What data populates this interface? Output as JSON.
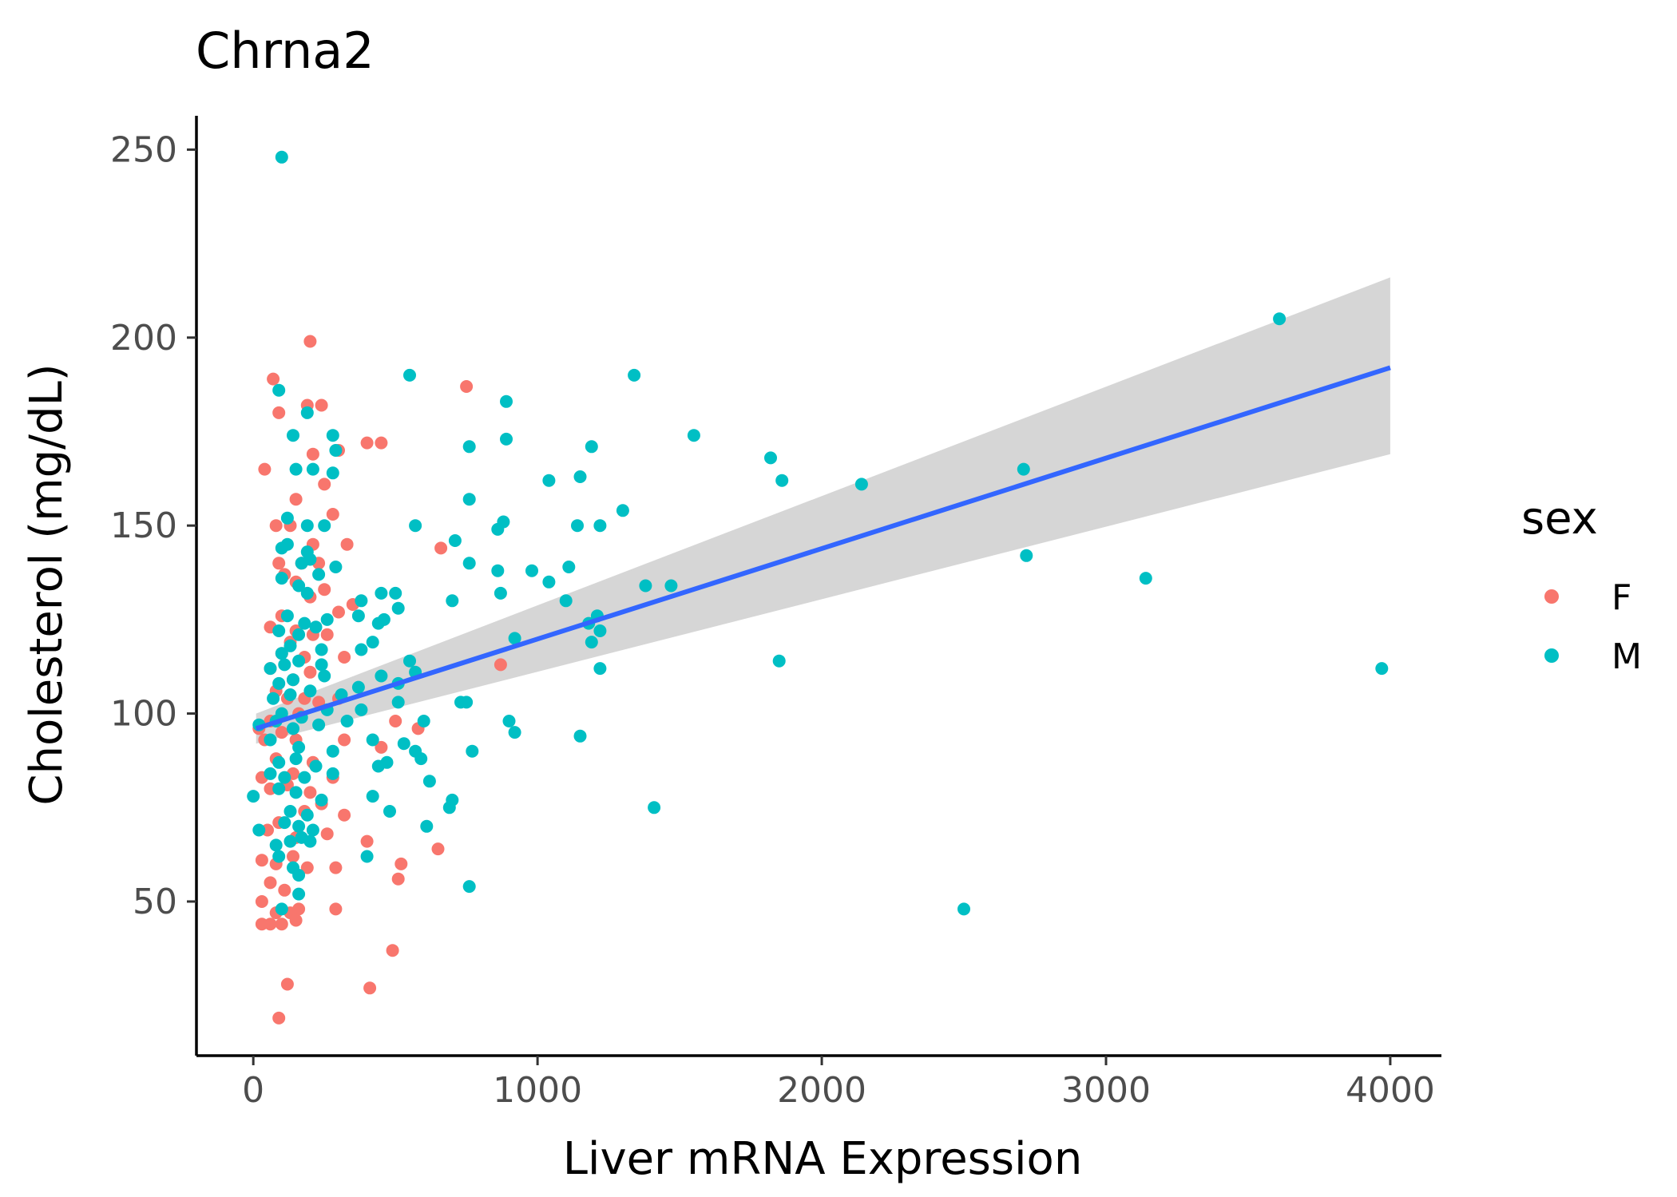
{
  "chart_data": {
    "type": "scatter",
    "title": "Chrna2",
    "xlabel": "Liver mRNA Expression",
    "ylabel": "Cholesterol (mg/dL)",
    "xlim": [
      -200,
      4180
    ],
    "ylim": [
      9,
      259
    ],
    "x_ticks": [
      0,
      1000,
      2000,
      3000,
      4000
    ],
    "y_ticks": [
      50,
      100,
      150,
      200,
      250
    ],
    "grid": false,
    "legend": {
      "title": "sex",
      "position": "right",
      "entries": [
        "F",
        "M"
      ]
    },
    "colors": {
      "F": "#F8766D",
      "M": "#00BFC4",
      "fit": "#3366FF",
      "ribbon": "#cccccc"
    },
    "fit": {
      "method": "lm",
      "x": [
        10,
        4000
      ],
      "y": [
        96,
        192
      ],
      "ci_lower": [
        92,
        169
      ],
      "ci_upper": [
        100,
        216
      ]
    },
    "series": [
      {
        "name": "F",
        "points": [
          [
            70,
            189
          ],
          [
            200,
            199
          ],
          [
            90,
            180
          ],
          [
            190,
            182
          ],
          [
            240,
            182
          ],
          [
            750,
            187
          ],
          [
            40,
            165
          ],
          [
            210,
            169
          ],
          [
            250,
            161
          ],
          [
            300,
            170
          ],
          [
            400,
            172
          ],
          [
            450,
            172
          ],
          [
            150,
            157
          ],
          [
            280,
            153
          ],
          [
            80,
            150
          ],
          [
            130,
            150
          ],
          [
            210,
            145
          ],
          [
            330,
            145
          ],
          [
            660,
            144
          ],
          [
            90,
            140
          ],
          [
            170,
            140
          ],
          [
            230,
            140
          ],
          [
            110,
            137
          ],
          [
            150,
            135
          ],
          [
            250,
            133
          ],
          [
            200,
            131
          ],
          [
            350,
            129
          ],
          [
            300,
            127
          ],
          [
            100,
            126
          ],
          [
            60,
            123
          ],
          [
            150,
            122
          ],
          [
            210,
            121
          ],
          [
            260,
            121
          ],
          [
            130,
            119
          ],
          [
            100,
            116
          ],
          [
            180,
            115
          ],
          [
            320,
            115
          ],
          [
            60,
            112
          ],
          [
            200,
            111
          ],
          [
            140,
            109
          ],
          [
            870,
            113
          ],
          [
            80,
            106
          ],
          [
            120,
            104
          ],
          [
            180,
            104
          ],
          [
            300,
            104
          ],
          [
            20,
            96
          ],
          [
            60,
            98
          ],
          [
            160,
            100
          ],
          [
            230,
            103
          ],
          [
            500,
            98
          ],
          [
            580,
            96
          ],
          [
            100,
            95
          ],
          [
            40,
            93
          ],
          [
            150,
            93
          ],
          [
            320,
            93
          ],
          [
            450,
            91
          ],
          [
            80,
            88
          ],
          [
            210,
            87
          ],
          [
            30,
            83
          ],
          [
            140,
            84
          ],
          [
            280,
            83
          ],
          [
            60,
            80
          ],
          [
            120,
            81
          ],
          [
            200,
            79
          ],
          [
            240,
            76
          ],
          [
            320,
            73
          ],
          [
            90,
            71
          ],
          [
            180,
            74
          ],
          [
            50,
            69
          ],
          [
            150,
            67
          ],
          [
            260,
            68
          ],
          [
            400,
            66
          ],
          [
            650,
            64
          ],
          [
            30,
            61
          ],
          [
            80,
            60
          ],
          [
            140,
            62
          ],
          [
            190,
            59
          ],
          [
            290,
            59
          ],
          [
            520,
            60
          ],
          [
            60,
            55
          ],
          [
            110,
            53
          ],
          [
            160,
            48
          ],
          [
            290,
            48
          ],
          [
            510,
            56
          ],
          [
            30,
            50
          ],
          [
            80,
            47
          ],
          [
            130,
            47
          ],
          [
            30,
            44
          ],
          [
            60,
            44
          ],
          [
            100,
            44
          ],
          [
            150,
            45
          ],
          [
            490,
            37
          ],
          [
            120,
            28
          ],
          [
            410,
            27
          ],
          [
            90,
            19
          ]
        ]
      },
      {
        "name": "M",
        "points": [
          [
            100,
            248
          ],
          [
            3610,
            205
          ],
          [
            90,
            186
          ],
          [
            550,
            190
          ],
          [
            1340,
            190
          ],
          [
            190,
            180
          ],
          [
            890,
            183
          ],
          [
            140,
            174
          ],
          [
            280,
            174
          ],
          [
            1550,
            174
          ],
          [
            290,
            170
          ],
          [
            760,
            171
          ],
          [
            890,
            173
          ],
          [
            1190,
            171
          ],
          [
            1820,
            168
          ],
          [
            150,
            165
          ],
          [
            210,
            165
          ],
          [
            280,
            164
          ],
          [
            2710,
            165
          ],
          [
            1040,
            162
          ],
          [
            1150,
            163
          ],
          [
            1860,
            162
          ],
          [
            2140,
            161
          ],
          [
            760,
            157
          ],
          [
            1300,
            154
          ],
          [
            120,
            152
          ],
          [
            190,
            150
          ],
          [
            250,
            150
          ],
          [
            570,
            150
          ],
          [
            860,
            149
          ],
          [
            880,
            151
          ],
          [
            1140,
            150
          ],
          [
            1220,
            150
          ],
          [
            100,
            144
          ],
          [
            120,
            145
          ],
          [
            190,
            143
          ],
          [
            200,
            141
          ],
          [
            710,
            146
          ],
          [
            2720,
            142
          ],
          [
            170,
            140
          ],
          [
            290,
            139
          ],
          [
            760,
            140
          ],
          [
            860,
            138
          ],
          [
            980,
            138
          ],
          [
            1110,
            139
          ],
          [
            100,
            136
          ],
          [
            160,
            134
          ],
          [
            190,
            132
          ],
          [
            230,
            137
          ],
          [
            870,
            132
          ],
          [
            1040,
            135
          ],
          [
            3140,
            136
          ],
          [
            1380,
            134
          ],
          [
            1470,
            134
          ],
          [
            380,
            130
          ],
          [
            450,
            132
          ],
          [
            500,
            132
          ],
          [
            700,
            130
          ],
          [
            1100,
            130
          ],
          [
            120,
            126
          ],
          [
            180,
            124
          ],
          [
            260,
            125
          ],
          [
            370,
            126
          ],
          [
            460,
            125
          ],
          [
            510,
            128
          ],
          [
            90,
            122
          ],
          [
            160,
            121
          ],
          [
            220,
            123
          ],
          [
            440,
            124
          ],
          [
            1210,
            126
          ],
          [
            1180,
            124
          ],
          [
            920,
            120
          ],
          [
            100,
            116
          ],
          [
            130,
            118
          ],
          [
            240,
            117
          ],
          [
            380,
            117
          ],
          [
            420,
            119
          ],
          [
            1190,
            119
          ],
          [
            1220,
            122
          ],
          [
            60,
            112
          ],
          [
            110,
            113
          ],
          [
            160,
            114
          ],
          [
            240,
            113
          ],
          [
            550,
            114
          ],
          [
            570,
            111
          ],
          [
            1220,
            112
          ],
          [
            1850,
            114
          ],
          [
            3970,
            112
          ],
          [
            90,
            108
          ],
          [
            140,
            109
          ],
          [
            250,
            110
          ],
          [
            450,
            110
          ],
          [
            510,
            108
          ],
          [
            70,
            104
          ],
          [
            130,
            105
          ],
          [
            200,
            106
          ],
          [
            310,
            105
          ],
          [
            370,
            107
          ],
          [
            730,
            103
          ],
          [
            750,
            103
          ],
          [
            100,
            100
          ],
          [
            170,
            99
          ],
          [
            260,
            101
          ],
          [
            380,
            101
          ],
          [
            510,
            103
          ],
          [
            20,
            97
          ],
          [
            80,
            98
          ],
          [
            140,
            96
          ],
          [
            230,
            97
          ],
          [
            330,
            98
          ],
          [
            600,
            98
          ],
          [
            900,
            98
          ],
          [
            920,
            95
          ],
          [
            1150,
            94
          ],
          [
            60,
            93
          ],
          [
            160,
            91
          ],
          [
            280,
            90
          ],
          [
            420,
            93
          ],
          [
            530,
            92
          ],
          [
            590,
            88
          ],
          [
            570,
            90
          ],
          [
            770,
            90
          ],
          [
            90,
            87
          ],
          [
            150,
            88
          ],
          [
            220,
            86
          ],
          [
            440,
            86
          ],
          [
            470,
            87
          ],
          [
            60,
            84
          ],
          [
            110,
            83
          ],
          [
            180,
            83
          ],
          [
            280,
            84
          ],
          [
            620,
            82
          ],
          [
            0,
            78
          ],
          [
            90,
            80
          ],
          [
            150,
            79
          ],
          [
            240,
            77
          ],
          [
            420,
            78
          ],
          [
            700,
            77
          ],
          [
            690,
            75
          ],
          [
            1410,
            75
          ],
          [
            130,
            74
          ],
          [
            190,
            73
          ],
          [
            480,
            74
          ],
          [
            20,
            69
          ],
          [
            110,
            71
          ],
          [
            160,
            70
          ],
          [
            210,
            69
          ],
          [
            610,
            70
          ],
          [
            80,
            65
          ],
          [
            130,
            66
          ],
          [
            170,
            67
          ],
          [
            200,
            66
          ],
          [
            400,
            62
          ],
          [
            90,
            62
          ],
          [
            140,
            59
          ],
          [
            160,
            57
          ],
          [
            760,
            54
          ],
          [
            160,
            52
          ],
          [
            100,
            48
          ],
          [
            2500,
            48
          ]
        ]
      }
    ]
  }
}
